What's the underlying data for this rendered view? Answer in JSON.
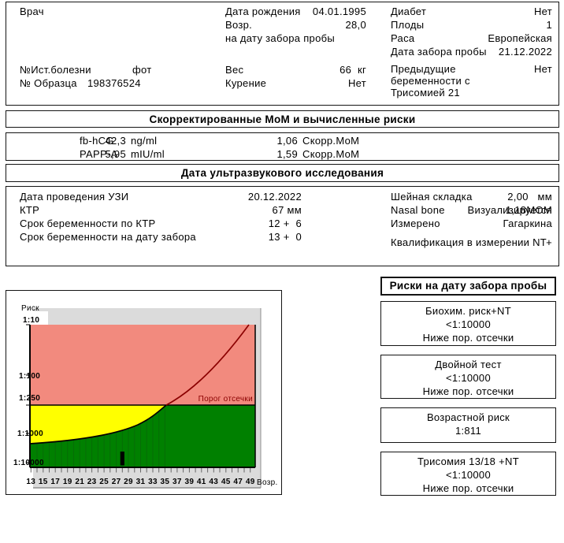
{
  "patient_box": {
    "doctor_label": "Врач",
    "history_label": "№Ист.болезни",
    "history_value": "фот",
    "sample_label": "№ Образца",
    "sample_value": "198376524",
    "col2": [
      {
        "label": "Дата рождения",
        "value": "04.01.1995"
      },
      {
        "label": "Возр.",
        "value": "28,0"
      },
      {
        "label": "на дату забора пробы",
        "value": ""
      }
    ],
    "col2b": [
      {
        "label": "Вес",
        "value": "66  кг"
      },
      {
        "label": "Курение",
        "value": "Нет"
      }
    ],
    "col3": [
      {
        "label": "Диабет",
        "value": "Нет"
      },
      {
        "label": "Плоды",
        "value": "1"
      },
      {
        "label": "Раса",
        "value": "Европейская"
      },
      {
        "label": "Дата забора пробы",
        "value": "21.12.2022"
      }
    ],
    "col3b": {
      "label_line1": "Предыдущие",
      "label_line2": "беременности с",
      "label_line3": "Трисомией 21",
      "value": "Нет"
    }
  },
  "mom_section": {
    "title": "Скорректированные МоМ и вычисленные риски",
    "rows": [
      {
        "analyte": "fb-hCG",
        "value": "42,3",
        "unit": "ng/ml",
        "mom": "1,06",
        "mom_label": "Скорр.МоМ"
      },
      {
        "analyte": "PAPP-A",
        "value": "5,95",
        "unit": "mIU/ml",
        "mom": "1,59",
        "mom_label": "Скорр.МоМ"
      }
    ]
  },
  "us_section": {
    "title": "Дата ультразвукового исследования",
    "left": [
      {
        "label": "Дата проведения УЗИ",
        "value": "20.12.2022"
      },
      {
        "label": "КТР",
        "value": "67 мм"
      },
      {
        "label": "Срок беременности по КТР",
        "value": "12 +  6"
      },
      {
        "label": "Срок беременности на дату забора",
        "value": "13 +  0"
      }
    ],
    "right": [
      {
        "label": "Шейная складка",
        "value": "2,00   мм"
      },
      {
        "label": "",
        "value": "1,18МОМ"
      },
      {
        "label": "Nasal bone",
        "value": "Визуализируется"
      },
      {
        "label": "Измерено",
        "value": "Гагаркина"
      },
      {
        "label": "Квалификация в измерении NT",
        "value": "+"
      }
    ]
  },
  "risk_panel": {
    "header": "Риски на дату забора пробы",
    "boxes": [
      {
        "title": "Биохим. риск+NT",
        "value": "<1:10000",
        "note": "Ниже пор. отсечки"
      },
      {
        "title": "Двойной тест",
        "value": "<1:10000",
        "note": "Ниже пор. отсечки"
      },
      {
        "title": "Возрастной риск",
        "value": "1:811",
        "note": ""
      },
      {
        "title": "Трисомия 13/18 +NT",
        "value": "<1:10000",
        "note": "Ниже пор. отсечки"
      }
    ]
  },
  "chart_data": {
    "type": "area",
    "title": "",
    "ylabel": "Риск",
    "xlabel": "Возр.",
    "y_ticks": [
      "1:10",
      "1:100",
      "1:250",
      "1:1000",
      "1:10000"
    ],
    "x_ticks": [
      "13",
      "15",
      "17",
      "19",
      "21",
      "23",
      "25",
      "27",
      "29",
      "31",
      "33",
      "35",
      "37",
      "39",
      "41",
      "43",
      "45",
      "47",
      "49"
    ],
    "x_range": [
      13,
      49
    ],
    "grid": false,
    "cutoff": {
      "label": "Порог отсечки",
      "risk": "1:250"
    },
    "series": [
      {
        "name": "Возрастной риск (кривая, риск 1:N по возрасту)",
        "points": [
          [
            13,
            2200
          ],
          [
            15,
            2100
          ],
          [
            17,
            2000
          ],
          [
            19,
            1800
          ],
          [
            21,
            1550
          ],
          [
            23,
            1300
          ],
          [
            25,
            1050
          ],
          [
            27,
            830
          ],
          [
            29,
            640
          ],
          [
            31,
            480
          ],
          [
            33,
            350
          ],
          [
            35,
            260
          ],
          [
            37,
            170
          ],
          [
            39,
            110
          ],
          [
            41,
            70
          ],
          [
            43,
            45
          ],
          [
            45,
            28
          ],
          [
            47,
            17
          ],
          [
            49,
            10
          ]
        ]
      }
    ],
    "patient_marker": {
      "age": 28
    },
    "colors": {
      "above_cutoff_region": "#F28A7E",
      "intermediate_region": "#FFFF00",
      "low_risk_region": "#008000",
      "curve_below_cutoff": "#000000",
      "curve_above_cutoff": "#8B0000",
      "panel_gray": "#DBDBDB"
    }
  }
}
